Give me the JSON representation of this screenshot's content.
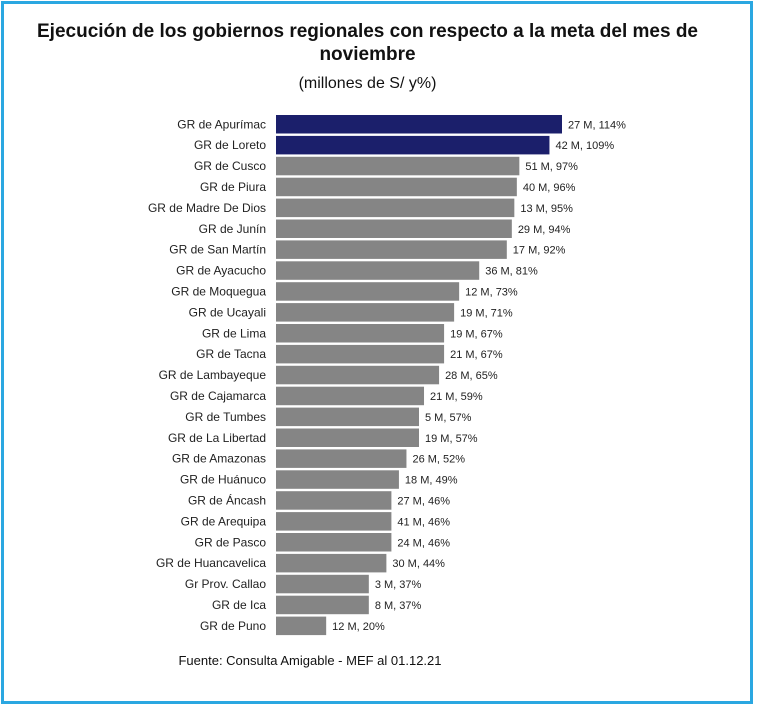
{
  "chart_data": {
    "type": "bar",
    "orientation": "horizontal",
    "title": "Ejecución de los gobiernos regionales con respecto a la meta del mes de noviembre",
    "subtitle": "(millones de S/ y%)",
    "source": "Fuente: Consulta Amigable - MEF al 01.12.21",
    "xlabel": "",
    "ylabel": "",
    "xlim": [
      0,
      114
    ],
    "grid": false,
    "legend": "none",
    "colors": {
      "highlight": "#1b1f6b",
      "default": "#858585"
    },
    "categories": [
      "GR de Apurímac",
      "GR de Loreto",
      "GR de Cusco",
      "GR de Piura",
      "GR de Madre De Dios",
      "GR de Junín",
      "GR de San Martín",
      "GR de Ayacucho",
      "GR de Moquegua",
      "GR de Ucayali",
      "GR de Lima",
      "GR de Tacna",
      "GR de Lambayeque",
      "GR de Cajamarca",
      "GR de Tumbes",
      "GR de La Libertad",
      "GR de Amazonas",
      "GR de Huánuco",
      "GR de Áncash",
      "GR de Arequipa",
      "GR de Pasco",
      "GR de Huancavelica",
      "Gr Prov. Callao",
      "GR de Ica",
      "GR de Puno"
    ],
    "values": [
      114,
      109,
      97,
      96,
      95,
      94,
      92,
      81,
      73,
      71,
      67,
      67,
      65,
      59,
      57,
      57,
      52,
      49,
      46,
      46,
      46,
      44,
      37,
      37,
      20
    ],
    "amounts_millions": [
      27,
      42,
      51,
      40,
      13,
      29,
      17,
      36,
      12,
      19,
      19,
      21,
      28,
      21,
      5,
      19,
      26,
      18,
      27,
      41,
      24,
      30,
      3,
      8,
      12
    ],
    "data_labels": [
      "27 M, 114%",
      "42 M, 109%",
      "51 M, 97%",
      "40 M, 96%",
      "13 M, 95%",
      "29 M, 94%",
      "17 M, 92%",
      "36 M, 81%",
      "12 M, 73%",
      "19 M, 71%",
      "19 M, 67%",
      "21 M, 67%",
      "28 M, 65%",
      "21 M, 59%",
      "5 M, 57%",
      "19 M, 57%",
      "26 M, 52%",
      "18 M, 49%",
      "27 M, 46%",
      "41 M, 46%",
      "24 M, 46%",
      "30 M, 44%",
      "3 M, 37%",
      "8 M, 37%",
      "12 M, 20%"
    ],
    "highlighted": [
      true,
      true,
      false,
      false,
      false,
      false,
      false,
      false,
      false,
      false,
      false,
      false,
      false,
      false,
      false,
      false,
      false,
      false,
      false,
      false,
      false,
      false,
      false,
      false,
      false
    ]
  }
}
